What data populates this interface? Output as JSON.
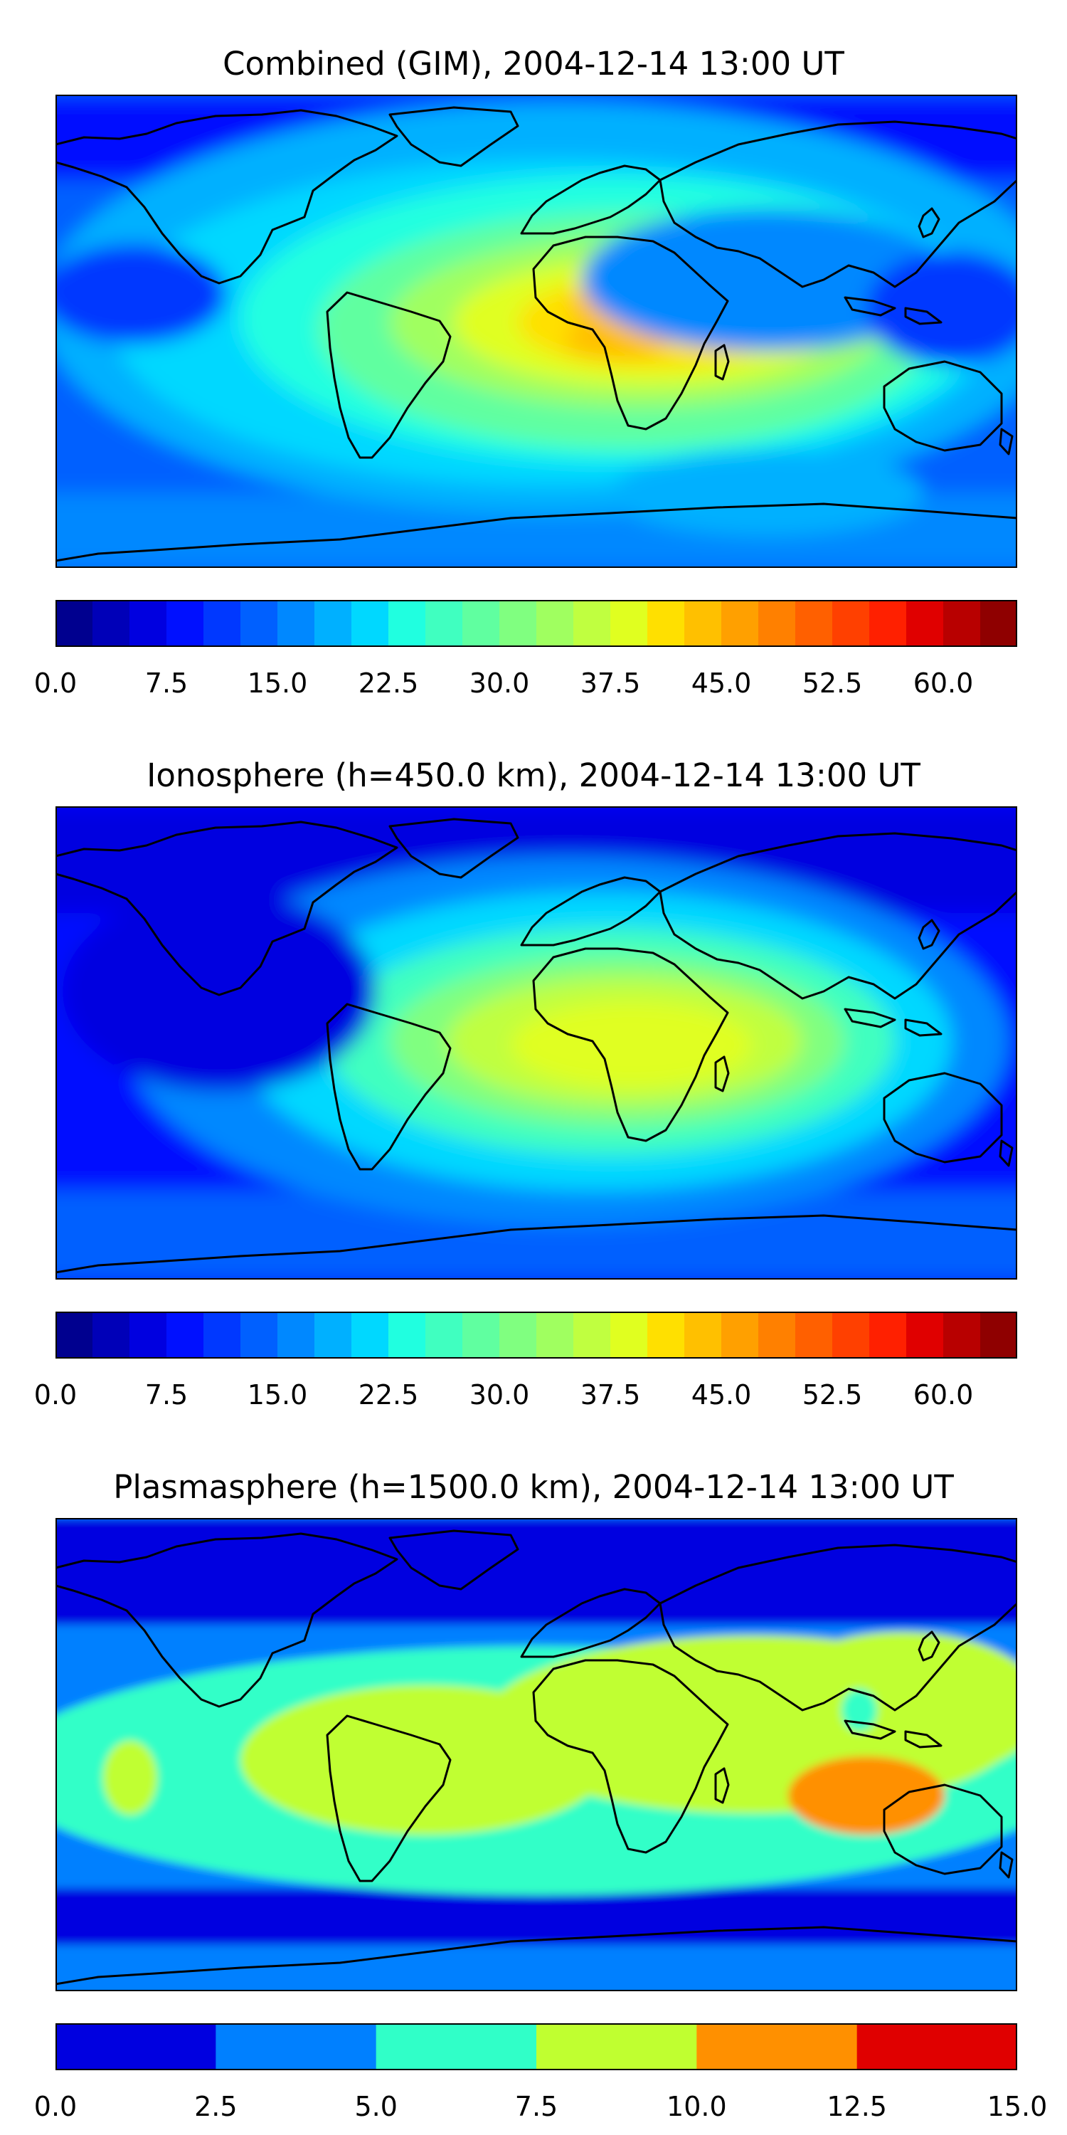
{
  "panels": [
    {
      "title": "Combined (GIM), 2004-12-14 13:00 UT",
      "variant": "combined",
      "colorbar": {
        "levels": [
          0.0,
          2.5,
          5.0,
          7.5,
          10.0,
          12.5,
          15.0,
          17.5,
          20.0,
          22.5,
          25.0,
          27.5,
          30.0,
          32.5,
          35.0,
          37.5,
          40.0,
          42.5,
          45.0,
          47.5,
          50.0,
          52.5,
          55.0,
          57.5,
          60.0,
          62.5,
          65.0
        ],
        "tick_labels": [
          "0.0",
          "7.5",
          "15.0",
          "22.5",
          "30.0",
          "37.5",
          "45.0",
          "52.5",
          "60.0"
        ],
        "tick_values": [
          0.0,
          7.5,
          15.0,
          22.5,
          30.0,
          37.5,
          45.0,
          52.5,
          60.0
        ],
        "colors": [
          "#00008f",
          "#0000b8",
          "#0000e0",
          "#0010ff",
          "#0038ff",
          "#0060ff",
          "#0088ff",
          "#00b0ff",
          "#00d8ff",
          "#20ffe0",
          "#40ffc0",
          "#60ffa0",
          "#80ff80",
          "#a0ff60",
          "#c0ff40",
          "#e0ff20",
          "#ffe000",
          "#ffc000",
          "#ffa000",
          "#ff8000",
          "#ff6000",
          "#ff4000",
          "#ff2000",
          "#e00000",
          "#b80000",
          "#8f0000"
        ]
      }
    },
    {
      "title": "Ionosphere  (h=450.0 km), 2004-12-14 13:00 UT",
      "variant": "ionosphere",
      "colorbar": {
        "levels": [
          0.0,
          2.5,
          5.0,
          7.5,
          10.0,
          12.5,
          15.0,
          17.5,
          20.0,
          22.5,
          25.0,
          27.5,
          30.0,
          32.5,
          35.0,
          37.5,
          40.0,
          42.5,
          45.0,
          47.5,
          50.0,
          52.5,
          55.0,
          57.5,
          60.0,
          62.5,
          65.0
        ],
        "tick_labels": [
          "0.0",
          "7.5",
          "15.0",
          "22.5",
          "30.0",
          "37.5",
          "45.0",
          "52.5",
          "60.0"
        ],
        "tick_values": [
          0.0,
          7.5,
          15.0,
          22.5,
          30.0,
          37.5,
          45.0,
          52.5,
          60.0
        ],
        "colors": [
          "#00008f",
          "#0000b8",
          "#0000e0",
          "#0010ff",
          "#0038ff",
          "#0060ff",
          "#0088ff",
          "#00b0ff",
          "#00d8ff",
          "#20ffe0",
          "#40ffc0",
          "#60ffa0",
          "#80ff80",
          "#a0ff60",
          "#c0ff40",
          "#e0ff20",
          "#ffe000",
          "#ffc000",
          "#ffa000",
          "#ff8000",
          "#ff6000",
          "#ff4000",
          "#ff2000",
          "#e00000",
          "#b80000",
          "#8f0000"
        ]
      }
    },
    {
      "title": "Plasmasphere (h=1500.0 km), 2004-12-14 13:00 UT",
      "variant": "plasmasphere",
      "colorbar": {
        "levels": [
          0.0,
          2.5,
          5.0,
          7.5,
          10.0,
          12.5,
          15.0
        ],
        "tick_labels": [
          "0.0",
          "2.5",
          "5.0",
          "7.5",
          "10.0",
          "12.5",
          "15.0"
        ],
        "tick_values": [
          0.0,
          2.5,
          5.0,
          7.5,
          10.0,
          12.5,
          15.0
        ],
        "colors": [
          "#0000e0",
          "#0080ff",
          "#30ffc8",
          "#c0ff30",
          "#ff9000",
          "#e00000"
        ]
      }
    }
  ]
}
